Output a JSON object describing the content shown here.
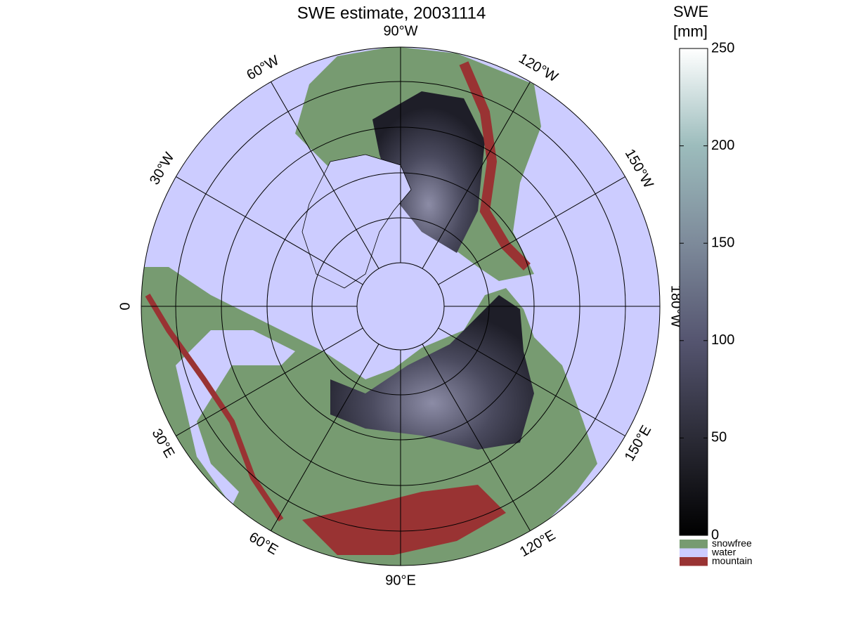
{
  "title": "SWE estimate, 20031114",
  "map": {
    "longitude_labels": [
      "90°W",
      "120°W",
      "150°W",
      "180°W",
      "150°E",
      "120°E",
      "90°E",
      "60°E",
      "30°E",
      "0",
      "30°W",
      "60°W"
    ]
  },
  "colorbar": {
    "label": [
      "SWE",
      "[mm]"
    ],
    "range": [
      0,
      250
    ],
    "ticks": [
      0,
      50,
      100,
      150,
      200,
      250
    ],
    "legend": [
      {
        "label": "snowfree",
        "color": "#779b71"
      },
      {
        "label": "water",
        "color": "#ccccff"
      },
      {
        "label": "mountain",
        "color": "#993333"
      }
    ]
  }
}
